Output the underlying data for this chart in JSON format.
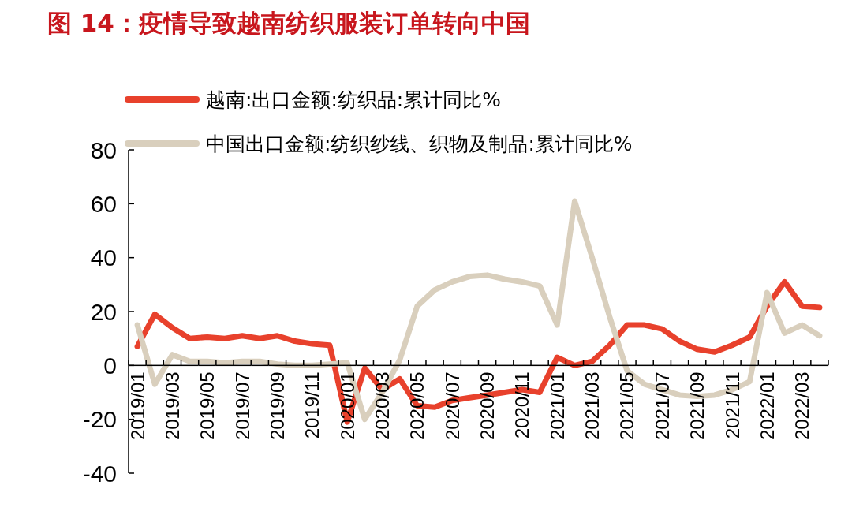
{
  "chart_data": {
    "type": "line",
    "title": "图 14：疫情导致越南纺织服装订单转向中国",
    "categories": [
      "2019/01",
      null,
      "2019/03",
      null,
      "2019/05",
      null,
      "2019/07",
      null,
      "2019/09",
      null,
      "2019/11",
      null,
      "2020/01",
      null,
      "2020/03",
      null,
      "2020/05",
      null,
      "2020/07",
      null,
      "2020/09",
      null,
      "2020/11",
      null,
      "2021/01",
      null,
      "2021/03",
      null,
      "2021/05",
      null,
      "2021/07",
      null,
      "2021/09",
      null,
      "2021/11",
      null,
      "2022/01",
      null,
      "2022/03",
      null
    ],
    "series": [
      {
        "name": "越南:出口金额:纺织品:累计同比%",
        "color": "#e8412c",
        "values": [
          7,
          19,
          14,
          10,
          10.5,
          10,
          11,
          10,
          11,
          9,
          8,
          7.5,
          -21,
          -1,
          -9,
          -5,
          -15,
          -15.5,
          -13,
          -12,
          -11,
          -10,
          -9,
          -10,
          3,
          0,
          1.5,
          7.5,
          15,
          15,
          13.5,
          9,
          6,
          5,
          7.5,
          10.5,
          22,
          31,
          22,
          21.5
        ]
      },
      {
        "name": "中国出口金额:纺织纱线、织物及制品:累计同比%",
        "color": "#d9cfbd",
        "values": [
          15,
          -7,
          4,
          1.5,
          1.5,
          1,
          1.5,
          1.5,
          0.5,
          0,
          0,
          0.5,
          1,
          -20,
          -10,
          2,
          22,
          28,
          31,
          33,
          33.5,
          32,
          31,
          29.5,
          15,
          61,
          40,
          18,
          -2,
          -7,
          -9,
          -11,
          -11.5,
          -11,
          -9,
          -6,
          27,
          12,
          15,
          11
        ]
      }
    ],
    "ylim": [
      -40,
      80
    ],
    "yticks": [
      -40,
      -20,
      0,
      20,
      40,
      60,
      80
    ],
    "legend": "top left",
    "marker": "none",
    "line_style": "solid"
  }
}
